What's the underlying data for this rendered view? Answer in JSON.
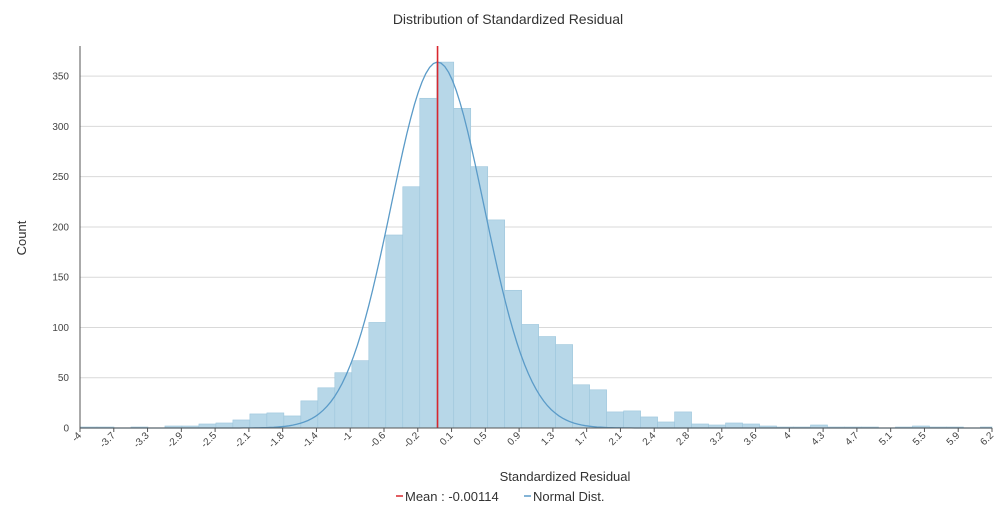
{
  "chart_data": {
    "type": "bar",
    "title": "Distribution of Standardized Residual",
    "xlabel": "Standardized Residual",
    "ylabel": "Count",
    "xlim": [
      -4,
      6.2
    ],
    "ylim": [
      0,
      380
    ],
    "yticks": [
      0,
      50,
      100,
      150,
      200,
      250,
      300,
      350
    ],
    "xtick_labels": [
      "-4",
      "-3.7",
      "-3.3",
      "-2.9",
      "-2.5",
      "-2.1",
      "-1.8",
      "-1.4",
      "-1",
      "-0.6",
      "-0.2",
      "0.1",
      "0.5",
      "0.9",
      "1.3",
      "1.7",
      "2.1",
      "2.4",
      "2.8",
      "3.2",
      "3.6",
      "4",
      "4.3",
      "4.7",
      "5.1",
      "5.5",
      "5.9",
      "6.2"
    ],
    "grid": true,
    "bin_width": 0.19,
    "bins": [
      {
        "x": -4.0,
        "count": 1
      },
      {
        "x": -3.81,
        "count": 1
      },
      {
        "x": -3.62,
        "count": 0
      },
      {
        "x": -3.43,
        "count": 1
      },
      {
        "x": -3.24,
        "count": 0
      },
      {
        "x": -3.05,
        "count": 2
      },
      {
        "x": -2.86,
        "count": 2
      },
      {
        "x": -2.67,
        "count": 4
      },
      {
        "x": -2.48,
        "count": 5
      },
      {
        "x": -2.29,
        "count": 8
      },
      {
        "x": -2.1,
        "count": 14
      },
      {
        "x": -1.91,
        "count": 15
      },
      {
        "x": -1.72,
        "count": 12
      },
      {
        "x": -1.53,
        "count": 27
      },
      {
        "x": -1.34,
        "count": 40
      },
      {
        "x": -1.15,
        "count": 55
      },
      {
        "x": -0.96,
        "count": 67
      },
      {
        "x": -0.77,
        "count": 105
      },
      {
        "x": -0.58,
        "count": 192
      },
      {
        "x": -0.39,
        "count": 240
      },
      {
        "x": -0.2,
        "count": 328
      },
      {
        "x": -0.01,
        "count": 364
      },
      {
        "x": 0.18,
        "count": 318
      },
      {
        "x": 0.37,
        "count": 260
      },
      {
        "x": 0.56,
        "count": 207
      },
      {
        "x": 0.75,
        "count": 137
      },
      {
        "x": 0.94,
        "count": 103
      },
      {
        "x": 1.13,
        "count": 91
      },
      {
        "x": 1.32,
        "count": 83
      },
      {
        "x": 1.51,
        "count": 43
      },
      {
        "x": 1.7,
        "count": 38
      },
      {
        "x": 1.89,
        "count": 16
      },
      {
        "x": 2.08,
        "count": 17
      },
      {
        "x": 2.27,
        "count": 11
      },
      {
        "x": 2.46,
        "count": 6
      },
      {
        "x": 2.65,
        "count": 16
      },
      {
        "x": 2.84,
        "count": 4
      },
      {
        "x": 3.03,
        "count": 3
      },
      {
        "x": 3.22,
        "count": 5
      },
      {
        "x": 3.41,
        "count": 4
      },
      {
        "x": 3.6,
        "count": 2
      },
      {
        "x": 3.79,
        "count": 1
      },
      {
        "x": 3.98,
        "count": 1
      },
      {
        "x": 4.17,
        "count": 3
      },
      {
        "x": 4.36,
        "count": 1
      },
      {
        "x": 4.55,
        "count": 1
      },
      {
        "x": 4.74,
        "count": 1
      },
      {
        "x": 4.93,
        "count": 0
      },
      {
        "x": 5.12,
        "count": 1
      },
      {
        "x": 5.31,
        "count": 2
      },
      {
        "x": 5.5,
        "count": 1
      },
      {
        "x": 5.69,
        "count": 1
      },
      {
        "x": 5.88,
        "count": 0
      },
      {
        "x": 6.07,
        "count": 1
      }
    ],
    "mean_line": {
      "value": -0.00114,
      "label": "Mean : -0.00114",
      "color": "#d9272e"
    },
    "normal_curve": {
      "label": "Normal Dist.",
      "peak_count": 364,
      "mean": -0.00114,
      "sd": 0.52,
      "color": "#5b9bc8"
    },
    "bar_color": "#b7d7e8",
    "bar_edge_color": "#9dc6dc",
    "legend_position": "bottom-center"
  }
}
